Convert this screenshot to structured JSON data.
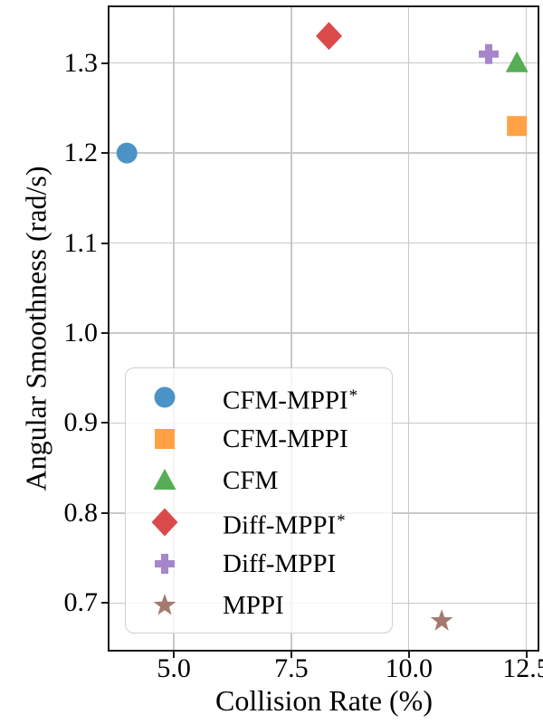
{
  "chart_data": {
    "type": "scatter",
    "title": "",
    "xlabel": "Collision Rate (%)",
    "ylabel": "Angular Smoothness (rad/s)",
    "xlim": [
      3.63,
      12.74
    ],
    "ylim": [
      0.648,
      1.362
    ],
    "xticks": [
      5.0,
      7.5,
      10.0,
      12.5
    ],
    "xticklabels": [
      "5.0",
      "7.5",
      "10.0",
      "12.5"
    ],
    "yticks": [
      0.7,
      0.8,
      0.9,
      1.0,
      1.1,
      1.2,
      1.3
    ],
    "yticklabels": [
      "0.7",
      "0.8",
      "0.9",
      "1.0",
      "1.1",
      "1.2",
      "1.3"
    ],
    "grid": true,
    "grid_color": "#c8c8c8",
    "spine_color": "#1a1a1a",
    "legend_position": "lower-left",
    "series": [
      {
        "label": "CFM-MPPI",
        "sup": "*",
        "marker": "circle",
        "color": "#4B93C6",
        "points": [
          [
            4.0,
            1.2
          ]
        ]
      },
      {
        "label": "CFM-MPPI",
        "sup": "",
        "marker": "square",
        "color": "#FFA144",
        "points": [
          [
            12.3,
            1.23
          ]
        ]
      },
      {
        "label": "CFM",
        "sup": "",
        "marker": "triangle",
        "color": "#55AE55",
        "points": [
          [
            12.3,
            1.3
          ]
        ]
      },
      {
        "label": "Diff-MPPI",
        "sup": "*",
        "marker": "diamond",
        "color": "#DA4A4B",
        "points": [
          [
            8.3,
            1.33
          ]
        ]
      },
      {
        "label": "Diff-MPPI",
        "sup": "",
        "marker": "plus",
        "color": "#A686CA",
        "points": [
          [
            11.7,
            1.31
          ]
        ]
      },
      {
        "label": "MPPI",
        "sup": "",
        "marker": "star",
        "color": "#A4796F",
        "points": [
          [
            10.7,
            0.68
          ]
        ]
      }
    ]
  }
}
